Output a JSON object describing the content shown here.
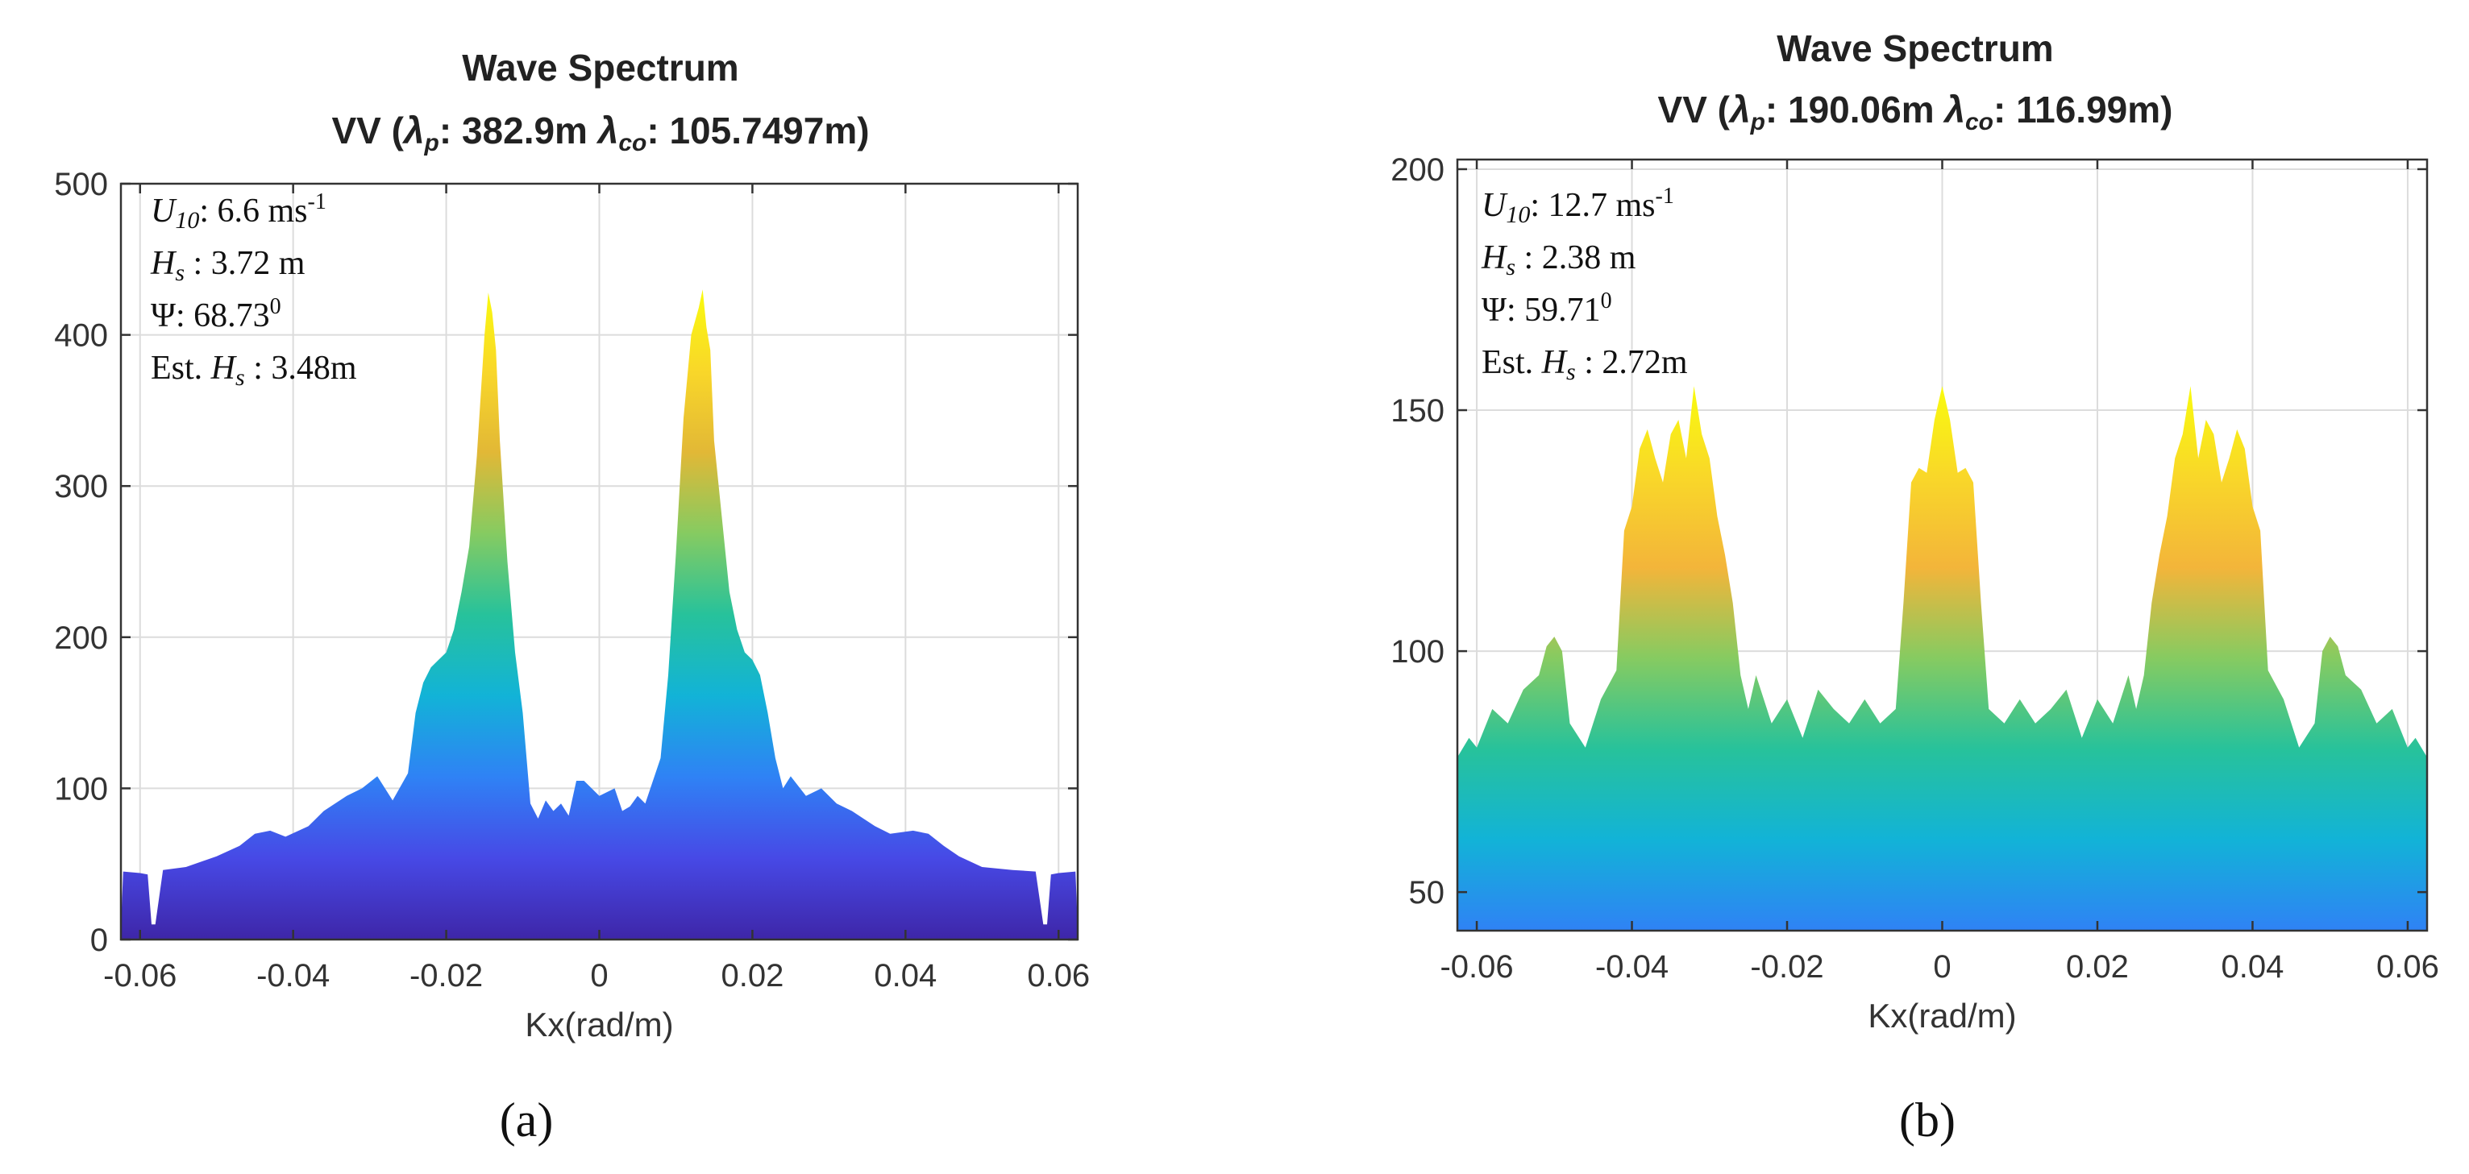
{
  "chart_data": [
    {
      "type": "area",
      "panel_label": "(a)",
      "title": "Wave Spectrum",
      "subtitle": "VV (λp: 382.9m λco: 105.7497m)",
      "subtitle_parts": {
        "pol": "VV (",
        "lp_sym": "λ",
        "lp_sub": "p",
        "lp_val": ": 382.9m ",
        "lc_sym": "λ",
        "lc_sub": "co",
        "lc_val": ": 105.7497m)"
      },
      "xlabel": "Kx(rad/m)",
      "ylabel": "",
      "xlim": [
        -0.0625,
        0.0625
      ],
      "ylim": [
        0,
        500
      ],
      "xticks": [
        -0.06,
        -0.04,
        -0.02,
        0,
        0.02,
        0.04,
        0.06
      ],
      "xtick_labels": [
        "-0.06",
        "-0.04",
        "-0.02",
        "0",
        "0.02",
        "0.04",
        "0.06"
      ],
      "yticks": [
        0,
        100,
        200,
        300,
        400,
        500
      ],
      "ytick_labels": [
        "0",
        "100",
        "200",
        "300",
        "400",
        "500"
      ],
      "colormap": [
        "#3e26a8",
        "#4749e6",
        "#2f82f5",
        "#12b3d7",
        "#27c29b",
        "#86cb61",
        "#e2b836",
        "#f9d729",
        "#f9fb0e"
      ],
      "annotations": {
        "u10_sym": "U",
        "u10_sub": "10",
        "u10_val": ": 6.6 ms",
        "u10_sup": "-1",
        "hs_sym": "H",
        "hs_sub": "s",
        "hs_val": " : 3.72 m",
        "psi_sym": "Ψ",
        "psi_val": ": 68.73",
        "psi_sup": "0",
        "est_pre": "Est. ",
        "est_sym": "H",
        "est_sub": "s",
        "est_val": " : 3.48m"
      },
      "x": [
        -0.0625,
        -0.0622,
        -0.06,
        -0.059,
        -0.0585,
        -0.058,
        -0.057,
        -0.054,
        -0.05,
        -0.047,
        -0.045,
        -0.043,
        -0.041,
        -0.038,
        -0.036,
        -0.033,
        -0.031,
        -0.029,
        -0.027,
        -0.025,
        -0.024,
        -0.023,
        -0.022,
        -0.021,
        -0.02,
        -0.019,
        -0.018,
        -0.017,
        -0.016,
        -0.015,
        -0.0145,
        -0.014,
        -0.0135,
        -0.013,
        -0.012,
        -0.011,
        -0.01,
        -0.009,
        -0.008,
        -0.007,
        -0.006,
        -0.005,
        -0.004,
        -0.003,
        -0.002,
        0,
        0.002,
        0.003,
        0.004,
        0.005,
        0.006,
        0.007,
        0.008,
        0.009,
        0.01,
        0.011,
        0.012,
        0.013,
        0.0135,
        0.014,
        0.0145,
        0.015,
        0.016,
        0.017,
        0.018,
        0.019,
        0.02,
        0.021,
        0.022,
        0.023,
        0.024,
        0.025,
        0.027,
        0.029,
        0.031,
        0.033,
        0.036,
        0.038,
        0.041,
        0.043,
        0.045,
        0.047,
        0.05,
        0.054,
        0.057,
        0.058,
        0.0585,
        0.059,
        0.06,
        0.0622,
        0.0625
      ],
      "y": [
        8,
        45,
        44,
        43,
        10,
        10,
        46,
        48,
        55,
        62,
        70,
        72,
        68,
        75,
        85,
        95,
        100,
        108,
        92,
        110,
        150,
        170,
        180,
        185,
        190,
        205,
        230,
        260,
        320,
        400,
        428,
        415,
        390,
        330,
        250,
        190,
        150,
        90,
        80,
        92,
        85,
        90,
        82,
        105,
        105,
        95,
        100,
        85,
        88,
        95,
        90,
        105,
        120,
        175,
        255,
        345,
        400,
        418,
        430,
        405,
        390,
        330,
        280,
        230,
        205,
        190,
        185,
        175,
        150,
        120,
        100,
        108,
        95,
        100,
        90,
        85,
        75,
        70,
        72,
        70,
        62,
        55,
        48,
        46,
        45,
        10,
        10,
        43,
        44,
        45,
        8
      ]
    },
    {
      "type": "area",
      "panel_label": "(b)",
      "title": "Wave Spectrum",
      "subtitle": "VV (λp: 190.06m λco: 116.99m)",
      "subtitle_parts": {
        "pol": "VV (",
        "lp_sym": "λ",
        "lp_sub": "p",
        "lp_val": ": 190.06m ",
        "lc_sym": "λ",
        "lc_sub": "co",
        "lc_val": ": 116.99m)"
      },
      "xlabel": "Kx(rad/m)",
      "ylabel": "",
      "xlim": [
        -0.0625,
        0.0625
      ],
      "ylim": [
        42,
        202
      ],
      "xticks": [
        -0.06,
        -0.04,
        -0.02,
        0,
        0.02,
        0.04,
        0.06
      ],
      "xtick_labels": [
        "-0.06",
        "-0.04",
        "-0.02",
        "0",
        "0.02",
        "0.04",
        "0.06"
      ],
      "yticks": [
        50,
        100,
        150,
        200
      ],
      "ytick_labels": [
        "50",
        "100",
        "150",
        "200"
      ],
      "colormap": [
        "#2f82f5",
        "#12b3d7",
        "#27c29b",
        "#86cb61",
        "#f3b53a",
        "#f9d729",
        "#f9fb0e"
      ],
      "annotations": {
        "u10_sym": "U",
        "u10_sub": "10",
        "u10_val": ": 12.7 ms",
        "u10_sup": "-1",
        "hs_sym": "H",
        "hs_sub": "s",
        "hs_val": " : 2.38 m",
        "psi_sym": "Ψ",
        "psi_val": ": 59.71",
        "psi_sup": "0",
        "est_pre": "Est. ",
        "est_sym": "H",
        "est_sub": "s",
        "est_val": " : 2.72m"
      },
      "x": [
        -0.0625,
        -0.061,
        -0.06,
        -0.058,
        -0.056,
        -0.054,
        -0.052,
        -0.051,
        -0.05,
        -0.049,
        -0.048,
        -0.046,
        -0.044,
        -0.042,
        -0.041,
        -0.04,
        -0.039,
        -0.038,
        -0.037,
        -0.036,
        -0.035,
        -0.034,
        -0.033,
        -0.032,
        -0.031,
        -0.03,
        -0.029,
        -0.028,
        -0.027,
        -0.026,
        -0.025,
        -0.024,
        -0.022,
        -0.02,
        -0.018,
        -0.016,
        -0.014,
        -0.012,
        -0.01,
        -0.008,
        -0.006,
        -0.005,
        -0.004,
        -0.003,
        -0.002,
        -0.001,
        0,
        0.001,
        0.002,
        0.003,
        0.004,
        0.005,
        0.006,
        0.008,
        0.01,
        0.012,
        0.014,
        0.016,
        0.018,
        0.02,
        0.022,
        0.024,
        0.025,
        0.026,
        0.027,
        0.028,
        0.029,
        0.03,
        0.031,
        0.032,
        0.033,
        0.034,
        0.035,
        0.036,
        0.037,
        0.038,
        0.039,
        0.04,
        0.041,
        0.042,
        0.044,
        0.046,
        0.048,
        0.049,
        0.05,
        0.051,
        0.052,
        0.054,
        0.056,
        0.058,
        0.06,
        0.061,
        0.0625
      ],
      "y": [
        78,
        82,
        80,
        88,
        85,
        92,
        95,
        101,
        103,
        100,
        85,
        80,
        90,
        96,
        125,
        130,
        142,
        146,
        140,
        135,
        145,
        148,
        140,
        155,
        145,
        140,
        128,
        120,
        110,
        95,
        88,
        95,
        85,
        90,
        82,
        92,
        88,
        85,
        90,
        85,
        88,
        110,
        135,
        138,
        137,
        148,
        155,
        148,
        137,
        138,
        135,
        110,
        88,
        85,
        90,
        85,
        88,
        92,
        82,
        90,
        85,
        95,
        88,
        95,
        110,
        120,
        128,
        140,
        145,
        155,
        140,
        148,
        145,
        135,
        140,
        146,
        142,
        130,
        125,
        96,
        90,
        80,
        85,
        100,
        103,
        101,
        95,
        92,
        85,
        88,
        80,
        82,
        78
      ]
    }
  ]
}
